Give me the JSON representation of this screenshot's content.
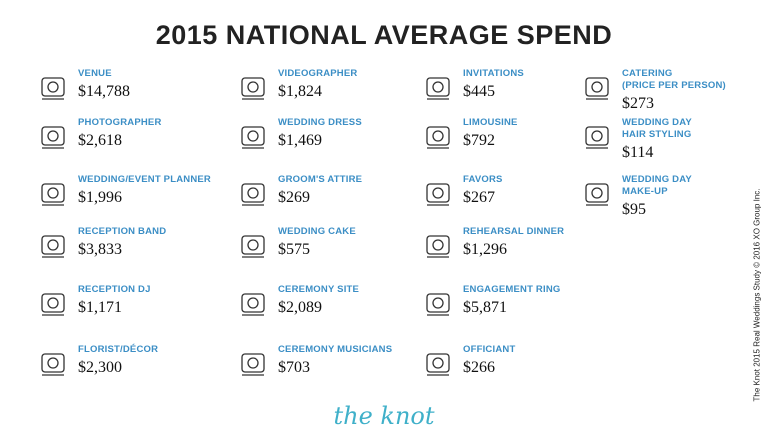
{
  "header": {
    "title": "2015 NATIONAL AVERAGE SPEND"
  },
  "columns": [
    [
      {
        "label": [
          "VENUE"
        ],
        "amount": "$14,788"
      },
      {
        "label": [
          "PHOTOGRAPHER"
        ],
        "amount": "$2,618"
      },
      {
        "label": [
          "WEDDING/EVENT PLANNER"
        ],
        "amount": "$1,996"
      },
      {
        "label": [
          "RECEPTION BAND"
        ],
        "amount": "$3,833"
      },
      {
        "label": [
          "RECEPTION DJ"
        ],
        "amount": "$1,171"
      },
      {
        "label": [
          "FLORIST/DÉCOR"
        ],
        "amount": "$2,300"
      }
    ],
    [
      {
        "label": [
          "VIDEOGRAPHER"
        ],
        "amount": "$1,824"
      },
      {
        "label": [
          "WEDDING DRESS"
        ],
        "amount": "$1,469"
      },
      {
        "label": [
          "GROOM'S ATTIRE"
        ],
        "amount": "$269"
      },
      {
        "label": [
          "WEDDING CAKE"
        ],
        "amount": "$575"
      },
      {
        "label": [
          "CEREMONY SITE"
        ],
        "amount": "$2,089"
      },
      {
        "label": [
          "CEREMONY MUSICIANS"
        ],
        "amount": "$703"
      }
    ],
    [
      {
        "label": [
          "INVITATIONS"
        ],
        "amount": "$445"
      },
      {
        "label": [
          "LIMOUSINE"
        ],
        "amount": "$792"
      },
      {
        "label": [
          "FAVORS"
        ],
        "amount": "$267"
      },
      {
        "label": [
          "REHEARSAL DINNER"
        ],
        "amount": "$1,296"
      },
      {
        "label": [
          "ENGAGEMENT RING"
        ],
        "amount": "$5,871"
      },
      {
        "label": [
          "OFFICIANT"
        ],
        "amount": "$266"
      }
    ],
    [
      {
        "label": [
          "CATERING",
          "(PRICE PER PERSON)"
        ],
        "amount": "$273"
      },
      {
        "label": [
          "WEDDING DAY",
          "HAIR STYLING"
        ],
        "amount": "$114"
      },
      {
        "label": [
          "WEDDING DAY",
          "MAKE-UP"
        ],
        "amount": "$95"
      }
    ]
  ],
  "footer": {
    "logo": "the knot",
    "credit": "The Knot 2015 Real Weddings Study © 2016 XO Group Inc."
  }
}
